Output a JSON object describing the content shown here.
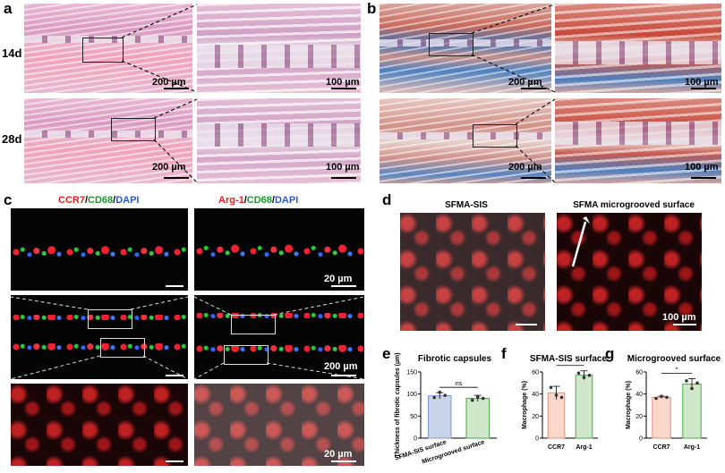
{
  "panel_labels": {
    "a": "a",
    "b": "b",
    "c": "c",
    "d": "d",
    "e": "e",
    "f": "f",
    "g": "g"
  },
  "rows": {
    "r14": "14d",
    "r28": "28d"
  },
  "scale": {
    "s200": "200 µm",
    "s100": "100 µm",
    "s20": "20 µm",
    "s100u": "100 µm"
  },
  "c_titles": {
    "left": [
      {
        "t": "CCR7",
        "c": "#e8201f"
      },
      {
        "t": "/",
        "c": "#000"
      },
      {
        "t": "CD68",
        "c": "#1a9a2b"
      },
      {
        "t": "/",
        "c": "#000"
      },
      {
        "t": "DAPI",
        "c": "#2a5bd7"
      }
    ],
    "right": [
      {
        "t": "Arg-1",
        "c": "#e8201f"
      },
      {
        "t": "/",
        "c": "#000"
      },
      {
        "t": "CD68",
        "c": "#1a9a2b"
      },
      {
        "t": "/",
        "c": "#000"
      },
      {
        "t": "DAPI",
        "c": "#2a5bd7"
      }
    ]
  },
  "d_titles": {
    "left": "SFMA-SIS",
    "right": "SFMA microgrooved surface"
  },
  "charts": {
    "e": {
      "title": "Fibrotic capsules",
      "ylabel": "Thickness of fibrotic capsules (µm)",
      "sig": "ns"
    },
    "f": {
      "title": "SFMA-SIS surface",
      "ylabel": "Macrophage (%)",
      "sig": "*"
    },
    "g": {
      "title": "Microgrooved surface",
      "ylabel": "Macrophage (%)",
      "sig": "*"
    }
  },
  "colors": {
    "blue": "#c9d3ea",
    "green": "#cfe8c9",
    "peach": "#fbd8cc",
    "blue_edge": "#7f95c9",
    "green_edge": "#4aa84a",
    "peach_edge": "#e58e73"
  },
  "chart_data": [
    {
      "type": "bar",
      "title": "Fibrotic capsules",
      "ylabel": "Thickness of fibrotic capsules (µm)",
      "categories": [
        "SFMA-SIS surface",
        "Microgrooved surface"
      ],
      "values": [
        96,
        90
      ],
      "errors": [
        7,
        7
      ],
      "ylim": [
        0,
        150
      ],
      "yticks": [
        0,
        50,
        100,
        150
      ],
      "points": [
        [
          92,
          104,
          97
        ],
        [
          86,
          93,
          90
        ]
      ],
      "annotation": "ns"
    },
    {
      "type": "bar",
      "title": "SFMA-SIS surface",
      "ylabel": "Macrophage (%)",
      "categories": [
        "CCR7",
        "Arg-1"
      ],
      "values": [
        41,
        57
      ],
      "errors": [
        6,
        4
      ],
      "ylim": [
        0,
        60
      ],
      "yticks": [
        0,
        20,
        40,
        60
      ],
      "points": [
        [
          46,
          39,
          37
        ],
        [
          59,
          55,
          57
        ]
      ],
      "annotation": "*"
    },
    {
      "type": "bar",
      "title": "Microgrooved surface",
      "ylabel": "Macrophage (%)",
      "categories": [
        "CCR7",
        "Arg-1"
      ],
      "values": [
        37,
        49
      ],
      "errors": [
        1,
        5
      ],
      "ylim": [
        0,
        60
      ],
      "yticks": [
        0,
        20,
        40,
        60
      ],
      "points": [
        [
          36,
          38,
          37
        ],
        [
          52,
          45,
          50
        ]
      ],
      "annotation": "*"
    }
  ]
}
